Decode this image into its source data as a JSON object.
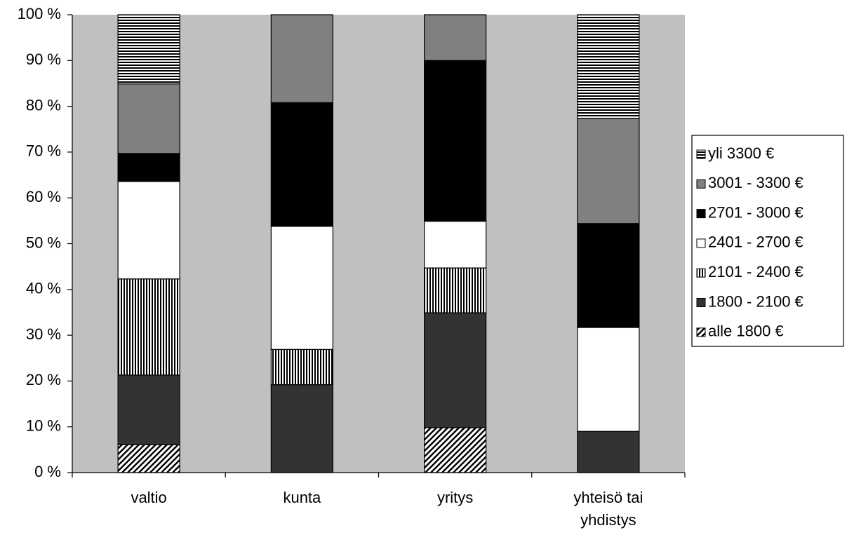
{
  "chart_data": {
    "type": "bar",
    "stacked": true,
    "percent_stacked": true,
    "categories": [
      "valtio",
      "kunta",
      "yritys",
      "yhteisö tai yhdistys"
    ],
    "category_label_lines": [
      [
        "valtio"
      ],
      [
        "kunta"
      ],
      [
        "yritys"
      ],
      [
        "yhteisö tai",
        "yhdistys"
      ]
    ],
    "series": [
      {
        "name": "alle 1800 €",
        "fill": "#ffffff",
        "pattern": "diagonal",
        "values": [
          6.1,
          0,
          9.8,
          0
        ]
      },
      {
        "name": "1800 - 2100 €",
        "fill": "#333333",
        "pattern": "solid",
        "values": [
          15.2,
          19.2,
          25.1,
          9.0
        ]
      },
      {
        "name": "2101 - 2400 €",
        "fill": "#ffffff",
        "pattern": "vertical",
        "values": [
          21.0,
          7.7,
          9.8,
          0
        ]
      },
      {
        "name": "2401 - 2700 €",
        "fill": "#ffffff",
        "pattern": "solid",
        "values": [
          21.3,
          26.9,
          10.2,
          22.7
        ]
      },
      {
        "name": "2701 - 3000 €",
        "fill": "#000000",
        "pattern": "solid",
        "values": [
          6.1,
          27.0,
          35.1,
          22.7
        ]
      },
      {
        "name": "3001 - 3300 €",
        "fill": "#808080",
        "pattern": "solid",
        "values": [
          15.2,
          19.2,
          10.0,
          23.0
        ]
      },
      {
        "name": "yli 3300 €",
        "fill": "#ffffff",
        "pattern": "horizontal",
        "values": [
          15.1,
          0,
          0,
          22.6
        ]
      }
    ],
    "legend_order": [
      "yli 3300 €",
      "3001 - 3300 €",
      "2701 - 3000 €",
      "2401 - 2700 €",
      "2101 - 2400 €",
      "1800 - 2100 €",
      "alle 1800 €"
    ],
    "ylim": [
      0,
      100
    ],
    "yticks": [
      0,
      10,
      20,
      30,
      40,
      50,
      60,
      70,
      80,
      90,
      100
    ],
    "ytick_labels": [
      "0 %",
      "10 %",
      "20 %",
      "30 %",
      "40 %",
      "50 %",
      "60 %",
      "70 %",
      "80 %",
      "90 %",
      "100 %"
    ],
    "title": "",
    "xlabel": "",
    "ylabel": "",
    "grid": false,
    "legend_position": "right",
    "plot_background": "#c0c0c0"
  }
}
